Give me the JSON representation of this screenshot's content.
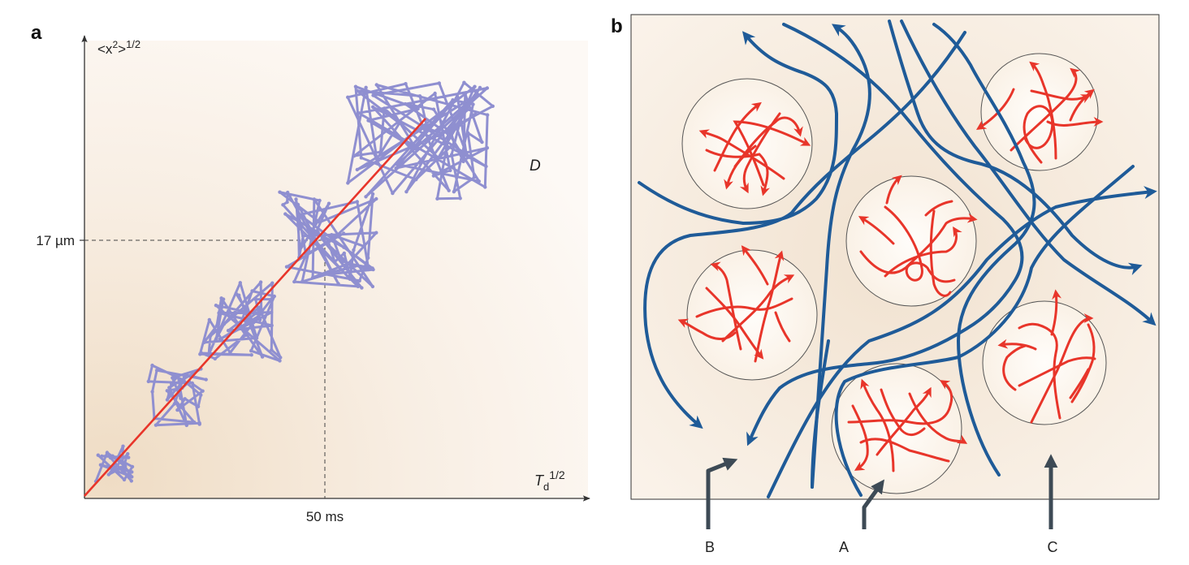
{
  "panel_a": {
    "letter": "a",
    "y_axis_label": "<x",
    "y_axis_sup_2": "2",
    "y_axis_close": ">",
    "y_axis_sup_half": "1/2",
    "x_axis_T": "T",
    "x_axis_sub_d": "d",
    "x_axis_sup_half": "1/2",
    "y_tick": "17 µm",
    "x_tick": "50 ms",
    "d_label": "D",
    "colors": {
      "walk": "#8f8fd0",
      "fit_line": "#e8352a",
      "axis": "#333333"
    }
  },
  "panel_b": {
    "letter": "b",
    "labels": {
      "A": "A",
      "B": "B",
      "C": "C"
    },
    "colors": {
      "flow": "#1f5b98",
      "diffusion": "#e8352a",
      "pointer": "#3d4a55",
      "circle_border": "#555555"
    }
  }
}
